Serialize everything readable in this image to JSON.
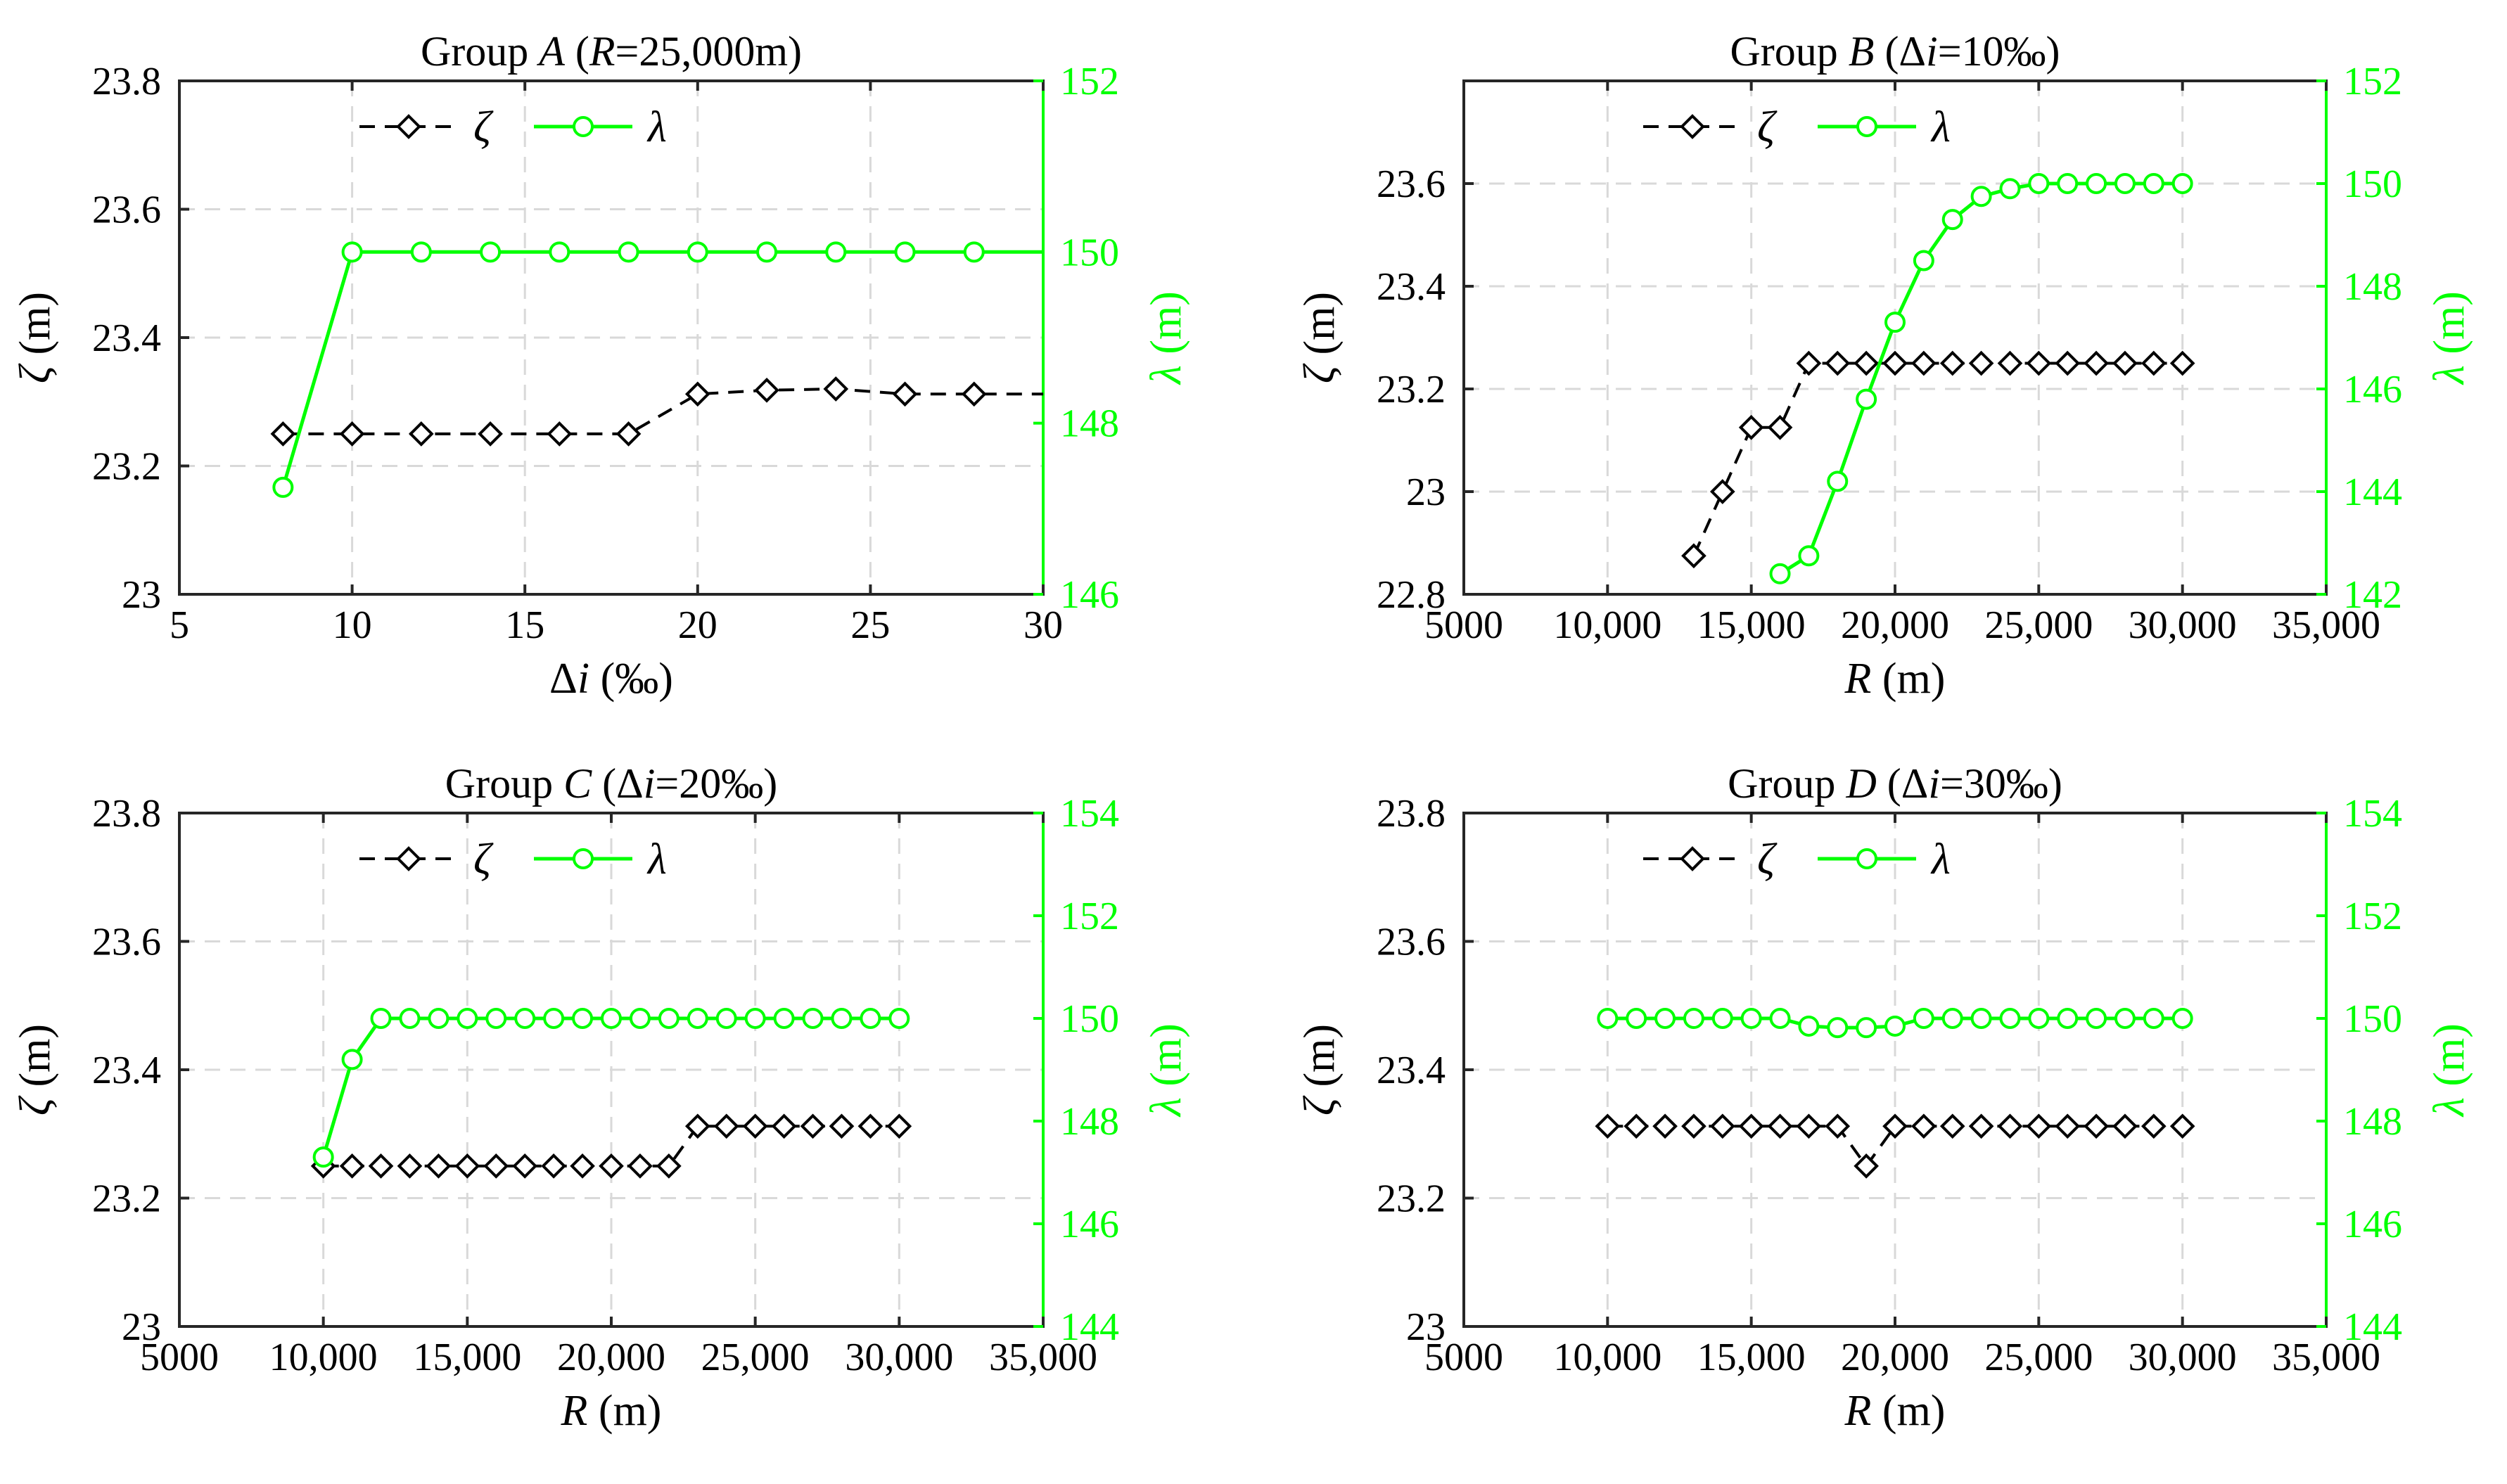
{
  "legend": {
    "zeta": "ζ",
    "lambda": "λ"
  },
  "chart_data": [
    {
      "type": "line",
      "title": {
        "pre": "Group ",
        "var": "A",
        "mid": " (",
        "var2": "R",
        "post": "=25,000m)"
      },
      "xlabel": {
        "pre": "Δ",
        "var": "i",
        "post": " (‰)"
      },
      "ylabel_left": {
        "var": "ζ",
        "post": " (m)"
      },
      "ylabel_right": {
        "var": "λ",
        "post": " (m)"
      },
      "xlim": [
        5,
        30
      ],
      "xticks": [
        5,
        10,
        15,
        20,
        25,
        30
      ],
      "xtick_labels": [
        "5",
        "10",
        "15",
        "20",
        "25",
        "30"
      ],
      "ylim_left": [
        23,
        23.8
      ],
      "yticks_left": [
        23,
        23.2,
        23.4,
        23.6,
        23.8
      ],
      "ytick_labels_left": [
        "23",
        "23.2",
        "23.4",
        "23.6",
        "23.8"
      ],
      "ylim_right": [
        146,
        152
      ],
      "yticks_right": [
        146,
        148,
        150,
        152
      ],
      "ytick_labels_right": [
        "146",
        "148",
        "150",
        "152"
      ],
      "grid": true,
      "legend_position": "top-center",
      "series": [
        {
          "name": "ζ",
          "axis": "left",
          "x": [
            8,
            10,
            12,
            14,
            16,
            18,
            20,
            22,
            24,
            26,
            28,
            30
          ],
          "values": [
            23.25,
            23.25,
            23.25,
            23.25,
            23.25,
            23.25,
            23.312,
            23.318,
            23.32,
            23.312,
            23.312,
            23.312
          ],
          "markers": [
            true,
            true,
            true,
            true,
            true,
            true,
            true,
            true,
            true,
            true,
            true,
            false
          ]
        },
        {
          "name": "λ",
          "axis": "right",
          "x": [
            8,
            10,
            12,
            14,
            16,
            18,
            20,
            22,
            24,
            26,
            28,
            30
          ],
          "values": [
            147.25,
            150,
            150,
            150,
            150,
            150,
            150,
            150,
            150,
            150,
            150,
            150
          ],
          "markers": [
            true,
            true,
            true,
            true,
            true,
            true,
            true,
            true,
            true,
            true,
            true,
            false
          ]
        }
      ]
    },
    {
      "type": "line",
      "title": {
        "pre": "Group ",
        "var": "B",
        "mid": " (Δ",
        "var2": "i",
        "post": "=10‰)"
      },
      "xlabel": {
        "pre": "",
        "var": "R",
        "post": " (m)"
      },
      "ylabel_left": {
        "var": "ζ",
        "post": " (m)"
      },
      "ylabel_right": {
        "var": "λ",
        "post": " (m)"
      },
      "xlim": [
        5000,
        35000
      ],
      "xticks": [
        5000,
        10000,
        15000,
        20000,
        25000,
        30000,
        35000
      ],
      "xtick_labels": [
        "5000",
        "10,000",
        "15,000",
        "20,000",
        "25,000",
        "30,000",
        "35,000"
      ],
      "ylim_left": [
        22.8,
        23.8
      ],
      "yticks_left": [
        22.8,
        23,
        23.2,
        23.4,
        23.6
      ],
      "ytick_labels_left": [
        "22.8",
        "23",
        "23.2",
        "23.4",
        "23.6"
      ],
      "ylim_right": [
        142,
        152
      ],
      "yticks_right": [
        142,
        144,
        146,
        148,
        150,
        152
      ],
      "ytick_labels_right": [
        "142",
        "144",
        "146",
        "148",
        "150",
        "152"
      ],
      "grid": true,
      "legend_position": "top-center",
      "series": [
        {
          "name": "ζ",
          "axis": "left",
          "x": [
            13000,
            14000,
            15000,
            16000,
            17000,
            18000,
            19000,
            20000,
            21000,
            22000,
            23000,
            24000,
            25000,
            26000,
            27000,
            28000,
            29000,
            30000
          ],
          "values": [
            22.875,
            23,
            23.125,
            23.125,
            23.25,
            23.25,
            23.25,
            23.25,
            23.25,
            23.25,
            23.25,
            23.25,
            23.25,
            23.25,
            23.25,
            23.25,
            23.25,
            23.25
          ]
        },
        {
          "name": "λ",
          "axis": "right",
          "x": [
            16000,
            17000,
            18000,
            19000,
            20000,
            21000,
            22000,
            23000,
            24000,
            25000,
            26000,
            27000,
            28000,
            29000,
            30000
          ],
          "values": [
            142.4,
            142.75,
            144.2,
            145.8,
            147.3,
            148.5,
            149.3,
            149.75,
            149.9,
            150,
            150,
            150,
            150,
            150,
            150
          ]
        }
      ]
    },
    {
      "type": "line",
      "title": {
        "pre": "Group ",
        "var": "C",
        "mid": " (Δ",
        "var2": "i",
        "post": "=20‰)"
      },
      "xlabel": {
        "pre": "",
        "var": "R",
        "post": " (m)"
      },
      "ylabel_left": {
        "var": "ζ",
        "post": " (m)"
      },
      "ylabel_right": {
        "var": "λ",
        "post": " (m)"
      },
      "xlim": [
        5000,
        35000
      ],
      "xticks": [
        5000,
        10000,
        15000,
        20000,
        25000,
        30000,
        35000
      ],
      "xtick_labels": [
        "5000",
        "10,000",
        "15,000",
        "20,000",
        "25,000",
        "30,000",
        "35,000"
      ],
      "ylim_left": [
        23,
        23.8
      ],
      "yticks_left": [
        23,
        23.2,
        23.4,
        23.6,
        23.8
      ],
      "ytick_labels_left": [
        "23",
        "23.2",
        "23.4",
        "23.6",
        "23.8"
      ],
      "ylim_right": [
        144,
        154
      ],
      "yticks_right": [
        144,
        146,
        148,
        150,
        152,
        154
      ],
      "ytick_labels_right": [
        "144",
        "146",
        "148",
        "150",
        "152",
        "154"
      ],
      "grid": true,
      "legend_position": "top-center",
      "series": [
        {
          "name": "ζ",
          "axis": "left",
          "x": [
            10000,
            11000,
            12000,
            13000,
            14000,
            15000,
            16000,
            17000,
            18000,
            19000,
            20000,
            21000,
            22000,
            23000,
            24000,
            25000,
            26000,
            27000,
            28000,
            29000,
            30000
          ],
          "values": [
            23.25,
            23.25,
            23.25,
            23.25,
            23.25,
            23.25,
            23.25,
            23.25,
            23.25,
            23.25,
            23.25,
            23.25,
            23.25,
            23.312,
            23.312,
            23.312,
            23.312,
            23.312,
            23.312,
            23.312,
            23.312
          ]
        },
        {
          "name": "λ",
          "axis": "right",
          "x": [
            10000,
            11000,
            12000,
            13000,
            14000,
            15000,
            16000,
            17000,
            18000,
            19000,
            20000,
            21000,
            22000,
            23000,
            24000,
            25000,
            26000,
            27000,
            28000,
            29000,
            30000
          ],
          "values": [
            147.3,
            149.2,
            150,
            150,
            150,
            150,
            150,
            150,
            150,
            150,
            150,
            150,
            150,
            150,
            150,
            150,
            150,
            150,
            150,
            150,
            150
          ]
        }
      ]
    },
    {
      "type": "line",
      "title": {
        "pre": "Group ",
        "var": "D",
        "mid": " (Δ",
        "var2": "i",
        "post": "=30‰)"
      },
      "xlabel": {
        "pre": "",
        "var": "R",
        "post": " (m)"
      },
      "ylabel_left": {
        "var": "ζ",
        "post": " (m)"
      },
      "ylabel_right": {
        "var": "λ",
        "post": " (m)"
      },
      "xlim": [
        5000,
        35000
      ],
      "xticks": [
        5000,
        10000,
        15000,
        20000,
        25000,
        30000,
        35000
      ],
      "xtick_labels": [
        "5000",
        "10,000",
        "15,000",
        "20,000",
        "25,000",
        "30,000",
        "35,000"
      ],
      "ylim_left": [
        23,
        23.8
      ],
      "yticks_left": [
        23,
        23.2,
        23.4,
        23.6,
        23.8
      ],
      "ytick_labels_left": [
        "23",
        "23.2",
        "23.4",
        "23.6",
        "23.8"
      ],
      "ylim_right": [
        144,
        154
      ],
      "yticks_right": [
        144,
        146,
        148,
        150,
        152,
        154
      ],
      "ytick_labels_right": [
        "144",
        "146",
        "148",
        "150",
        "152",
        "154"
      ],
      "grid": true,
      "legend_position": "top-center",
      "series": [
        {
          "name": "ζ",
          "axis": "left",
          "x": [
            10000,
            11000,
            12000,
            13000,
            14000,
            15000,
            16000,
            17000,
            18000,
            19000,
            20000,
            21000,
            22000,
            23000,
            24000,
            25000,
            26000,
            27000,
            28000,
            29000,
            30000
          ],
          "values": [
            23.312,
            23.312,
            23.312,
            23.312,
            23.312,
            23.312,
            23.312,
            23.312,
            23.312,
            23.25,
            23.312,
            23.312,
            23.312,
            23.312,
            23.312,
            23.312,
            23.312,
            23.312,
            23.312,
            23.312,
            23.312
          ]
        },
        {
          "name": "λ",
          "axis": "right",
          "x": [
            10000,
            11000,
            12000,
            13000,
            14000,
            15000,
            16000,
            17000,
            18000,
            19000,
            20000,
            21000,
            22000,
            23000,
            24000,
            25000,
            26000,
            27000,
            28000,
            29000,
            30000
          ],
          "values": [
            150,
            150,
            150,
            150,
            150,
            150,
            150,
            149.85,
            149.82,
            149.82,
            149.85,
            150,
            150,
            150,
            150,
            150,
            150,
            150,
            150,
            150,
            150
          ]
        }
      ]
    }
  ]
}
